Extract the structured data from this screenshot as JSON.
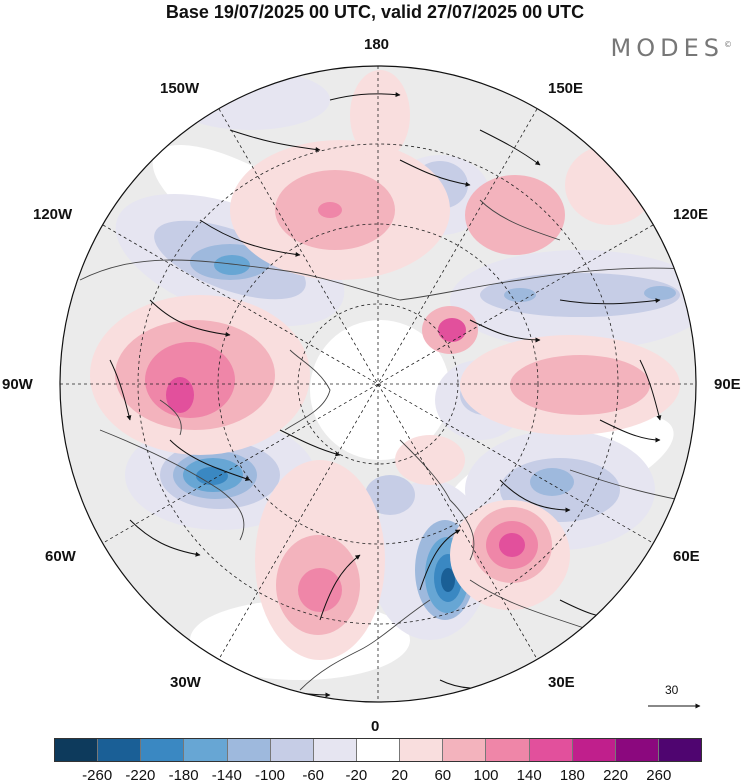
{
  "title": "Base 19/07/2025 00 UTC, valid 27/07/2025 00 UTC",
  "brand": "MODES",
  "brand_mark": "©",
  "longitude_labels": {
    "n": "180",
    "s": "0",
    "w": "90W",
    "e": "90E",
    "nw1": "150W",
    "ne1": "150E",
    "nw2": "120W",
    "ne2": "120E",
    "sw1": "60W",
    "se1": "60E",
    "sw2": "30W",
    "se2": "30E"
  },
  "vector_scale_label": "30",
  "colorbar": {
    "colors": [
      "#0d3a5c",
      "#1a5f96",
      "#3a88c2",
      "#67a6d4",
      "#9eb9dd",
      "#c6cde6",
      "#e6e5f1",
      "#ffffff",
      "#f9dede",
      "#f3b3bd",
      "#ef86a8",
      "#e2509c",
      "#c01f8c",
      "#8b087e",
      "#4f0570"
    ],
    "ticks": [
      "-260",
      "-220",
      "-180",
      "-140",
      "-100",
      "-60",
      "-20",
      "20",
      "60",
      "100",
      "140",
      "180",
      "220",
      "260"
    ]
  }
}
